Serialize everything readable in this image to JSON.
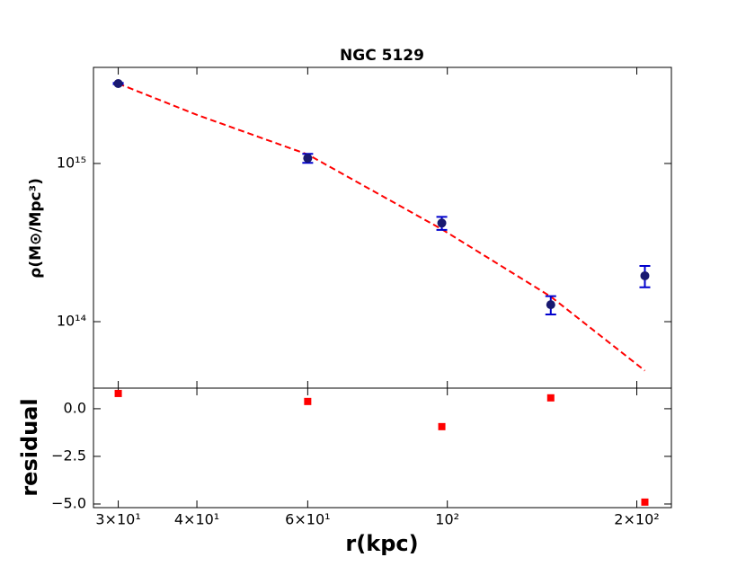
{
  "chart_data": [
    {
      "type": "scatter",
      "title": "NGC 5129",
      "ylabel": "ρ(M⊙/Mpc³)",
      "log_x": true,
      "log_y": true,
      "x": [
        30,
        60,
        98,
        146,
        206
      ],
      "values": [
        3200000000000000.0,
        1080000000000000.0,
        420000000000000.0,
        128000000000000.0,
        195000000000000.0
      ],
      "errors": [
        30000000000000.0,
        70000000000000.0,
        40000000000000.0,
        17000000000000.0,
        30000000000000.0
      ],
      "color": "#191970",
      "error_color": "#0000cd",
      "fit": {
        "x": [
          30,
          40,
          60,
          98,
          146,
          206
        ],
        "values": [
          3200000000000000.0,
          2030000000000000.0,
          1140000000000000.0,
          384000000000000.0,
          144000000000000.0,
          49000000000000.0
        ],
        "color": "#ff0000"
      },
      "xlim": [
        27.4,
        227
      ],
      "ylim": [
        38000000000000.0,
        4050000000000000.0
      ],
      "yticks": [
        {
          "value": 100000000000000.0,
          "label": "10¹⁴"
        },
        {
          "value": 1000000000000000.0,
          "label": "10¹⁵"
        }
      ]
    },
    {
      "type": "scatter",
      "xlabel": "r(kpc)",
      "ylabel": "residual",
      "log_x": true,
      "x": [
        30,
        60,
        98,
        146,
        206
      ],
      "values": [
        0.8,
        0.38,
        -0.94,
        0.57,
        -4.9
      ],
      "color": "#ff0000",
      "xlim": [
        27.4,
        227
      ],
      "ylim": [
        -5.19,
        1.08
      ],
      "xticks": [
        {
          "value": 30,
          "label": "3×10¹"
        },
        {
          "value": 40,
          "label": "4×10¹"
        },
        {
          "value": 60,
          "label": "6×10¹"
        },
        {
          "value": 100,
          "label": "10²"
        },
        {
          "value": 200,
          "label": "2×10²"
        }
      ],
      "yticks": [
        {
          "value": 0,
          "label": "0.0"
        },
        {
          "value": -2.5,
          "label": "−2.5"
        },
        {
          "value": -5,
          "label": "−5.0"
        }
      ]
    }
  ]
}
